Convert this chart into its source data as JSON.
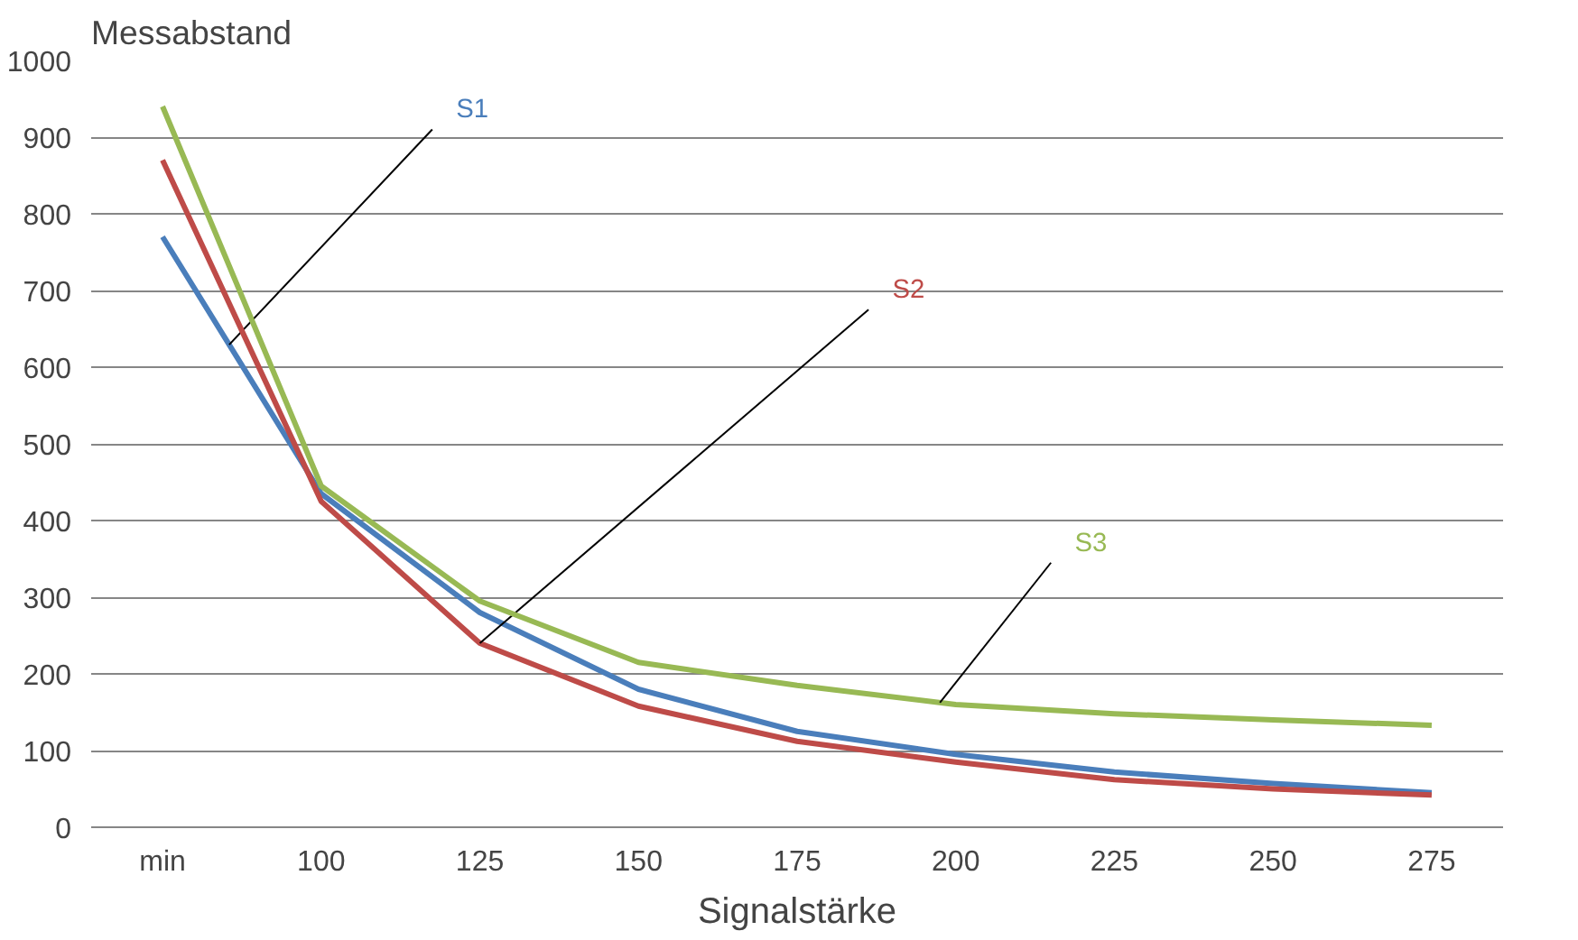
{
  "chart_data": {
    "type": "line",
    "ylabel": "Messabstand",
    "xlabel": "Signalstärke",
    "categories": [
      "min",
      "100",
      "125",
      "150",
      "175",
      "200",
      "225",
      "250",
      "275"
    ],
    "series": [
      {
        "name": "S1",
        "color": "#4a7ebb",
        "values": [
          770,
          435,
          280,
          180,
          125,
          95,
          72,
          57,
          45
        ]
      },
      {
        "name": "S2",
        "color": "#be4b48",
        "values": [
          870,
          425,
          240,
          158,
          112,
          85,
          62,
          50,
          42
        ]
      },
      {
        "name": "S3",
        "color": "#98b954",
        "values": [
          940,
          445,
          295,
          215,
          185,
          160,
          148,
          140,
          133
        ]
      }
    ],
    "ylim": [
      0,
      1000
    ],
    "yticks": [
      0,
      100,
      200,
      300,
      400,
      500,
      600,
      700,
      800,
      900,
      1000
    ],
    "grid": "y",
    "marker": "none",
    "line_style": "solid"
  }
}
